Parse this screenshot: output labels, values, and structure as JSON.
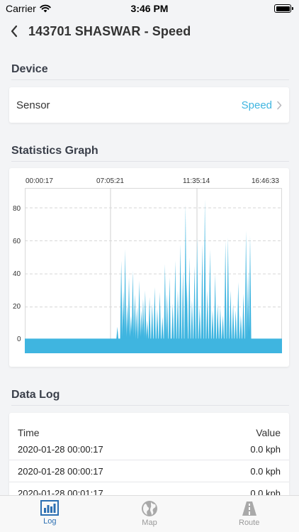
{
  "status": {
    "carrier": "Carrier",
    "time": "3:46 PM"
  },
  "nav": {
    "title": "143701 SHASWAR - Speed"
  },
  "device": {
    "section_title": "Device",
    "sensor_label": "Sensor",
    "sensor_value": "Speed"
  },
  "graph": {
    "section_title": "Statistics Graph",
    "time_labels": [
      "00:00:17",
      "07:05:21",
      "11:35:14",
      "16:46:33"
    ],
    "y_ticks": [
      "80",
      "60",
      "40",
      "20",
      "0"
    ]
  },
  "chart_data": {
    "type": "bar",
    "title": "",
    "xlabel": "",
    "ylabel": "",
    "x_ticks": [
      "00:00:17",
      "07:05:21",
      "11:35:14",
      "16:46:33"
    ],
    "ylim": [
      -8,
      92
    ],
    "y_ticks": [
      0,
      20,
      40,
      60,
      80
    ],
    "grid": true,
    "color": "#3fb5e0",
    "baseline_value": 0,
    "spikes": [
      {
        "x": 0.36,
        "v": 8
      },
      {
        "x": 0.375,
        "v": 48
      },
      {
        "x": 0.383,
        "v": 30
      },
      {
        "x": 0.39,
        "v": 55
      },
      {
        "x": 0.398,
        "v": 22
      },
      {
        "x": 0.405,
        "v": 38
      },
      {
        "x": 0.413,
        "v": 15
      },
      {
        "x": 0.42,
        "v": 42
      },
      {
        "x": 0.428,
        "v": 28
      },
      {
        "x": 0.436,
        "v": 20
      },
      {
        "x": 0.445,
        "v": 36
      },
      {
        "x": 0.453,
        "v": 18
      },
      {
        "x": 0.46,
        "v": 25
      },
      {
        "x": 0.468,
        "v": 30
      },
      {
        "x": 0.476,
        "v": 12
      },
      {
        "x": 0.485,
        "v": 26
      },
      {
        "x": 0.495,
        "v": 22
      },
      {
        "x": 0.505,
        "v": 32
      },
      {
        "x": 0.515,
        "v": 19
      },
      {
        "x": 0.525,
        "v": 29
      },
      {
        "x": 0.535,
        "v": 14
      },
      {
        "x": 0.545,
        "v": 46
      },
      {
        "x": 0.553,
        "v": 28
      },
      {
        "x": 0.563,
        "v": 38
      },
      {
        "x": 0.575,
        "v": 22
      },
      {
        "x": 0.585,
        "v": 48
      },
      {
        "x": 0.595,
        "v": 30
      },
      {
        "x": 0.605,
        "v": 58
      },
      {
        "x": 0.615,
        "v": 42
      },
      {
        "x": 0.625,
        "v": 82
      },
      {
        "x": 0.63,
        "v": 36
      },
      {
        "x": 0.64,
        "v": 50
      },
      {
        "x": 0.65,
        "v": 24
      },
      {
        "x": 0.66,
        "v": 45
      },
      {
        "x": 0.67,
        "v": 62
      },
      {
        "x": 0.68,
        "v": 20
      },
      {
        "x": 0.69,
        "v": 58
      },
      {
        "x": 0.7,
        "v": 85
      },
      {
        "x": 0.71,
        "v": 30
      },
      {
        "x": 0.72,
        "v": 55
      },
      {
        "x": 0.73,
        "v": 18
      },
      {
        "x": 0.74,
        "v": 40
      },
      {
        "x": 0.75,
        "v": 22
      },
      {
        "x": 0.76,
        "v": 20
      },
      {
        "x": 0.77,
        "v": 15
      },
      {
        "x": 0.78,
        "v": 60
      },
      {
        "x": 0.79,
        "v": 62
      },
      {
        "x": 0.8,
        "v": 30
      },
      {
        "x": 0.81,
        "v": 22
      },
      {
        "x": 0.82,
        "v": 18
      },
      {
        "x": 0.83,
        "v": 35
      },
      {
        "x": 0.84,
        "v": 15
      },
      {
        "x": 0.85,
        "v": 28
      },
      {
        "x": 0.86,
        "v": 66
      },
      {
        "x": 0.868,
        "v": 42
      },
      {
        "x": 0.876,
        "v": 63
      }
    ]
  },
  "data_log": {
    "section_title": "Data Log",
    "col_time": "Time",
    "col_value": "Value",
    "rows": [
      {
        "time": "2020-01-28 00:00:17",
        "value": "0.0 kph"
      },
      {
        "time": "2020-01-28 00:00:17",
        "value": "0.0 kph"
      },
      {
        "time": "2020-01-28 00:01:17",
        "value": "0.0 kph"
      }
    ]
  },
  "tabs": [
    {
      "label": "Log",
      "icon": "bar-chart-icon",
      "active": true
    },
    {
      "label": "Map",
      "icon": "globe-icon",
      "active": false
    },
    {
      "label": "Route",
      "icon": "road-icon",
      "active": false
    }
  ],
  "colors": {
    "accent": "#3fb5e0",
    "tab_active": "#2c6fb2",
    "tab_inactive": "#999999"
  }
}
